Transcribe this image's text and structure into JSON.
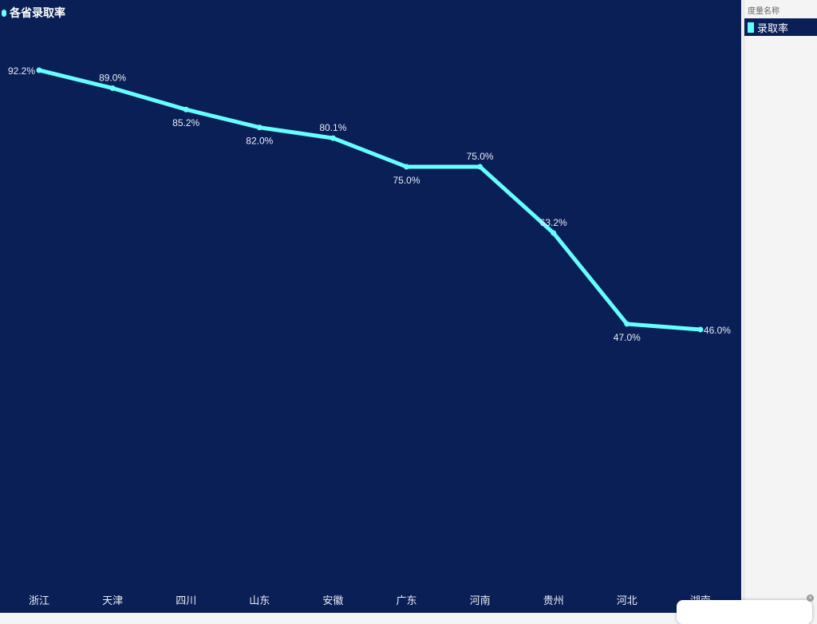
{
  "chart_data": {
    "type": "line",
    "title": "各省录取率",
    "categories": [
      "浙江",
      "天津",
      "四川",
      "山东",
      "安徽",
      "广东",
      "河南",
      "贵州",
      "河北",
      "湖南"
    ],
    "series": [
      {
        "name": "录取率",
        "values": [
          92.2,
          89.0,
          85.2,
          82.0,
          80.1,
          75.0,
          75.0,
          63.2,
          47.0,
          46.0
        ],
        "color": "#66ffff"
      }
    ],
    "data_labels": [
      "92.2%",
      "89.0%",
      "85.2%",
      "82.0%",
      "80.1%",
      "75.0%",
      "75.0%",
      "63.2%",
      "47.0%",
      "46.0%"
    ],
    "unit": "%",
    "grid": false,
    "legend_position": "right"
  },
  "legend": {
    "title": "度量名称",
    "items": [
      "录取率"
    ]
  },
  "colors": {
    "background": "#0b1f57",
    "line": "#66ffff"
  }
}
